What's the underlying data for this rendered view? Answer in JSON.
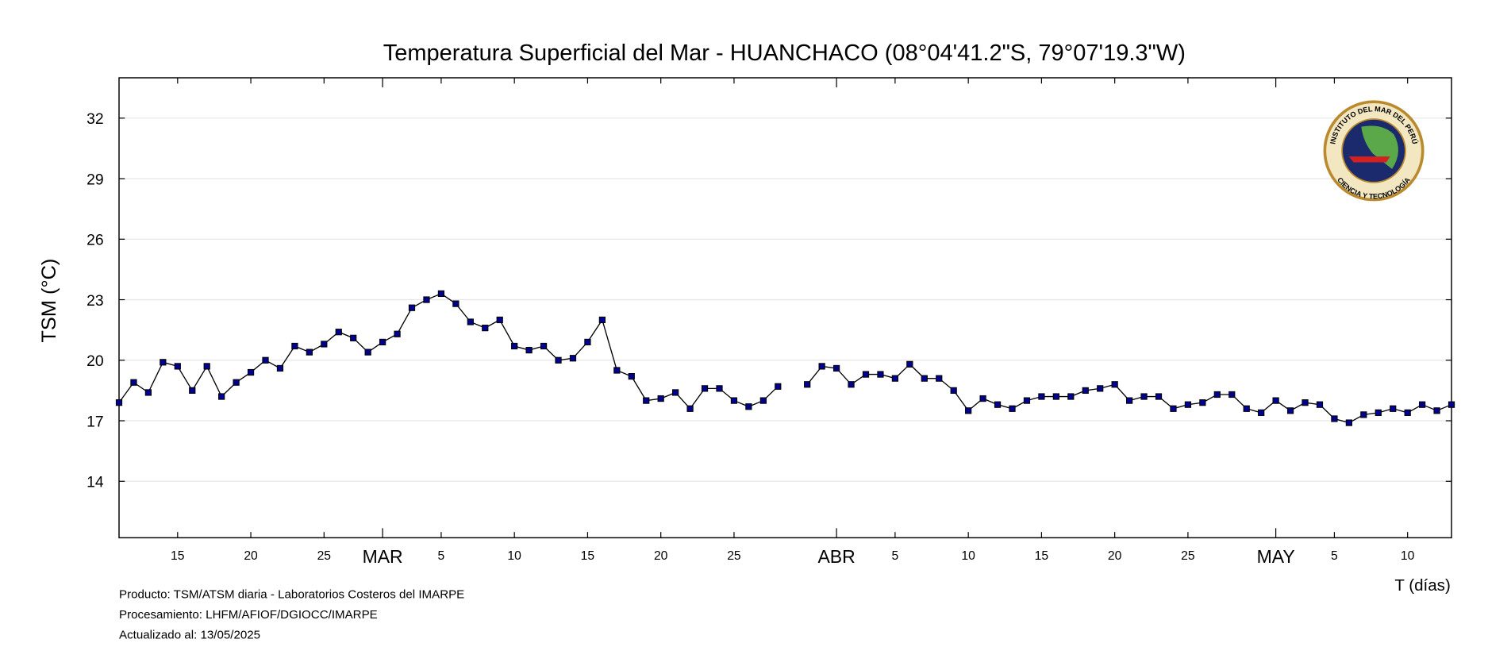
{
  "chart_data": {
    "type": "line",
    "title": "Temperatura Superficial del Mar - HUANCHACO (08°04'41.2\"S, 79°07'19.3\"W)",
    "ylabel": "TSM (°C)",
    "xlabel": "T (días)",
    "footer": [
      "Producto: TSM/ATSM diaria - Laboratorios Costeros del IMARPE",
      "Procesamiento: LHFM/AFIOF/DGIOCC/IMARPE",
      "Actualizado al: 13/05/2025"
    ],
    "logo": {
      "top_text": "INSTITUTO DEL MAR DEL PERÚ",
      "bottom_text": "CIENCIA Y TECNOLOGÍA"
    },
    "color": "#00008b",
    "grid": true,
    "ylim": [
      11.2,
      34
    ],
    "yticks": [
      14,
      17,
      20,
      23,
      26,
      29,
      32
    ],
    "xlim": [
      "02-11",
      "05-13"
    ],
    "xticks": [
      {
        "value": "02-15",
        "label": "15"
      },
      {
        "value": "02-20",
        "label": "20"
      },
      {
        "value": "02-25",
        "label": "25"
      },
      {
        "value": "03-01",
        "label": "MAR"
      },
      {
        "value": "03-05",
        "label": "5"
      },
      {
        "value": "03-10",
        "label": "10"
      },
      {
        "value": "03-15",
        "label": "15"
      },
      {
        "value": "03-20",
        "label": "20"
      },
      {
        "value": "03-25",
        "label": "25"
      },
      {
        "value": "04-01",
        "label": "ABR"
      },
      {
        "value": "04-05",
        "label": "5"
      },
      {
        "value": "04-10",
        "label": "10"
      },
      {
        "value": "04-15",
        "label": "15"
      },
      {
        "value": "04-20",
        "label": "20"
      },
      {
        "value": "04-25",
        "label": "25"
      },
      {
        "value": "05-01",
        "label": "MAY"
      },
      {
        "value": "05-05",
        "label": "5"
      },
      {
        "value": "05-10",
        "label": "10"
      }
    ],
    "x": [
      "02-11",
      "02-12",
      "02-13",
      "02-14",
      "02-15",
      "02-16",
      "02-17",
      "02-18",
      "02-19",
      "02-20",
      "02-21",
      "02-22",
      "02-23",
      "02-24",
      "02-25",
      "02-26",
      "02-27",
      "02-28",
      "03-01",
      "03-02",
      "03-03",
      "03-04",
      "03-05",
      "03-06",
      "03-07",
      "03-08",
      "03-09",
      "03-10",
      "03-11",
      "03-12",
      "03-13",
      "03-14",
      "03-15",
      "03-16",
      "03-17",
      "03-18",
      "03-19",
      "03-20",
      "03-21",
      "03-22",
      "03-23",
      "03-24",
      "03-25",
      "03-26",
      "03-27",
      "03-28",
      "03-29",
      "03-30",
      "03-31",
      "04-01",
      "04-02",
      "04-03",
      "04-04",
      "04-05",
      "04-06",
      "04-07",
      "04-08",
      "04-09",
      "04-10",
      "04-11",
      "04-12",
      "04-13",
      "04-14",
      "04-15",
      "04-16",
      "04-17",
      "04-18",
      "04-19",
      "04-20",
      "04-21",
      "04-22",
      "04-23",
      "04-24",
      "04-25",
      "04-26",
      "04-27",
      "04-28",
      "04-29",
      "04-30",
      "05-01",
      "05-02",
      "05-03",
      "05-04",
      "05-05",
      "05-06",
      "05-07",
      "05-08",
      "05-09",
      "05-10",
      "05-11",
      "05-12",
      "05-13"
    ],
    "values": [
      17.9,
      18.9,
      18.4,
      19.9,
      19.7,
      18.5,
      19.7,
      18.2,
      18.9,
      19.4,
      20.0,
      19.6,
      20.7,
      20.4,
      20.8,
      21.4,
      21.1,
      20.4,
      20.9,
      21.3,
      22.6,
      23.0,
      23.3,
      22.8,
      21.9,
      21.6,
      22.0,
      20.7,
      20.5,
      20.7,
      20.0,
      20.1,
      20.9,
      22.0,
      19.5,
      19.2,
      18.0,
      18.1,
      18.4,
      17.6,
      18.6,
      18.6,
      18.0,
      17.7,
      18.0,
      18.7,
      null,
      18.8,
      19.7,
      19.6,
      18.8,
      19.3,
      19.3,
      19.1,
      19.8,
      19.1,
      19.1,
      18.5,
      17.5,
      18.1,
      17.8,
      17.6,
      18.0,
      18.2,
      18.2,
      18.2,
      18.5,
      18.6,
      18.8,
      18.0,
      18.2,
      18.2,
      17.6,
      17.8,
      17.9,
      18.3,
      18.3,
      17.6,
      17.4,
      18.0,
      17.5,
      17.9,
      17.8,
      17.1,
      16.9,
      17.3,
      17.4,
      17.6,
      17.4,
      17.8,
      17.5,
      17.8
    ]
  }
}
